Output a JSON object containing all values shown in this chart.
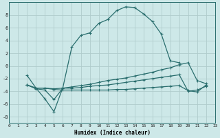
{
  "xlabel": "Humidex (Indice chaleur)",
  "background_color": "#cde8e8",
  "line_color": "#2a6e6e",
  "grid_color": "#b0cccc",
  "xlim": [
    0,
    23
  ],
  "ylim": [
    -9,
    10
  ],
  "xticks": [
    0,
    1,
    2,
    3,
    4,
    5,
    6,
    7,
    8,
    9,
    10,
    11,
    12,
    13,
    14,
    15,
    16,
    17,
    18,
    19,
    20,
    21,
    22,
    23
  ],
  "yticks": [
    -8,
    -6,
    -4,
    -2,
    0,
    2,
    4,
    6,
    8
  ],
  "curve1_x": [
    2,
    3,
    4,
    5,
    6,
    7,
    8,
    9,
    10,
    11,
    12,
    13,
    14,
    15,
    16,
    17,
    18,
    19
  ],
  "curve1_y": [
    -1.5,
    -3.5,
    -5.2,
    -7.2,
    -3.4,
    3.0,
    4.8,
    5.2,
    6.7,
    7.3,
    8.7,
    9.3,
    9.2,
    8.2,
    7.0,
    5.0,
    0.8,
    0.5
  ],
  "curve2_x": [
    2,
    3,
    4,
    5,
    6,
    7,
    8,
    9,
    10,
    11,
    12,
    13,
    14,
    15,
    16,
    17,
    18,
    19,
    20,
    21,
    22
  ],
  "curve2_y": [
    -3.0,
    -3.5,
    -3.5,
    -3.6,
    -3.5,
    -3.3,
    -3.1,
    -2.9,
    -2.6,
    -2.3,
    -2.1,
    -1.9,
    -1.6,
    -1.3,
    -1.0,
    -0.6,
    -0.3,
    0.2,
    0.5,
    -2.3,
    -2.8
  ],
  "curve3_x": [
    2,
    3,
    4,
    5,
    6,
    7,
    8,
    9,
    10,
    11,
    12,
    13,
    14,
    15,
    16,
    17,
    18,
    19,
    20,
    21,
    22
  ],
  "curve3_y": [
    -3.0,
    -3.6,
    -3.8,
    -5.3,
    -3.5,
    -3.5,
    -3.4,
    -3.2,
    -3.1,
    -3.0,
    -2.8,
    -2.6,
    -2.4,
    -2.2,
    -2.0,
    -1.8,
    -1.6,
    -1.4,
    -4.0,
    -3.8,
    -3.2
  ],
  "curve4_x": [
    2,
    3,
    4,
    5,
    6,
    7,
    8,
    9,
    10,
    11,
    12,
    13,
    14,
    15,
    16,
    17,
    18,
    19,
    20,
    21,
    22
  ],
  "curve4_y": [
    -3.0,
    -3.5,
    -3.5,
    -3.7,
    -3.8,
    -3.8,
    -3.8,
    -3.8,
    -3.8,
    -3.8,
    -3.7,
    -3.7,
    -3.6,
    -3.5,
    -3.4,
    -3.3,
    -3.2,
    -3.1,
    -3.9,
    -4.1,
    -3.0
  ]
}
